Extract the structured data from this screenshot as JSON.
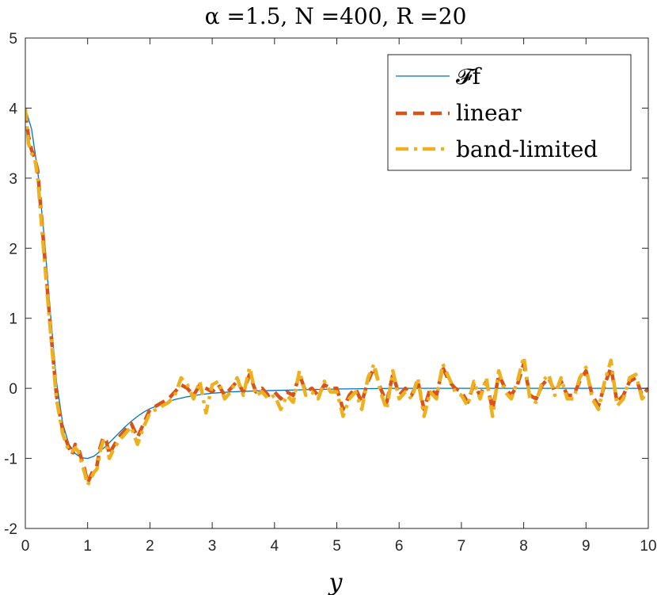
{
  "chart_data": {
    "type": "line",
    "title": "α =1.5, N =400, R =20",
    "xlabel": "y",
    "ylabel": "",
    "xlim": [
      0,
      10
    ],
    "ylim": [
      -2,
      5
    ],
    "xticks": [
      0,
      1,
      2,
      3,
      4,
      5,
      6,
      7,
      8,
      9,
      10
    ],
    "yticks": [
      -2,
      -1,
      0,
      1,
      2,
      3,
      4,
      5
    ],
    "grid": false,
    "legend_position": "top-right",
    "series": [
      {
        "name": "𝓕f",
        "color": "#0072BD",
        "style": "solid",
        "x": [
          0,
          0.1,
          0.2,
          0.3,
          0.4,
          0.5,
          0.6,
          0.7,
          0.8,
          0.9,
          1.0,
          1.1,
          1.2,
          1.3,
          1.4,
          1.5,
          1.6,
          1.7,
          1.8,
          1.9,
          2.0,
          2.2,
          2.4,
          2.6,
          2.8,
          3.0,
          3.3,
          3.6,
          4.0,
          4.5,
          5.0,
          6.0,
          7.0,
          8.0,
          9.0,
          10.0
        ],
        "y": [
          4.0,
          3.7,
          3.1,
          2.2,
          1.1,
          0.1,
          -0.5,
          -0.8,
          -0.93,
          -0.99,
          -1.0,
          -0.97,
          -0.9,
          -0.82,
          -0.73,
          -0.64,
          -0.55,
          -0.47,
          -0.4,
          -0.34,
          -0.29,
          -0.22,
          -0.16,
          -0.12,
          -0.09,
          -0.07,
          -0.05,
          -0.04,
          -0.03,
          -0.02,
          -0.01,
          0.0,
          0.0,
          0.0,
          0.0,
          0.0
        ]
      },
      {
        "name": "linear",
        "color": "#D95319",
        "style": "dashed",
        "x": [
          0,
          0.05,
          0.1,
          0.15,
          0.2,
          0.3,
          0.4,
          0.5,
          0.6,
          0.7,
          0.75,
          0.8,
          0.85,
          0.9,
          0.95,
          1.0,
          1.05,
          1.1,
          1.15,
          1.2,
          1.25,
          1.3,
          1.35,
          1.4,
          1.5,
          1.6,
          1.7,
          1.8,
          1.9,
          2.0,
          2.1,
          2.2,
          2.3,
          2.4,
          2.5,
          2.6,
          2.7,
          2.8,
          2.9,
          3.0,
          3.1,
          3.2,
          3.3,
          3.4,
          3.5,
          3.6,
          3.7,
          3.8,
          3.9,
          4.0,
          4.1,
          4.2,
          4.3,
          4.4,
          4.5,
          4.6,
          4.7,
          4.8,
          4.9,
          5.0,
          5.1,
          5.2,
          5.3,
          5.4,
          5.5,
          5.6,
          5.7,
          5.8,
          5.9,
          6.0,
          6.1,
          6.2,
          6.3,
          6.4,
          6.5,
          6.6,
          6.7,
          6.8,
          6.9,
          7.0,
          7.1,
          7.2,
          7.3,
          7.4,
          7.5,
          7.6,
          7.7,
          7.8,
          7.9,
          8.0,
          8.1,
          8.2,
          8.3,
          8.4,
          8.5,
          8.6,
          8.7,
          8.8,
          8.9,
          9.0,
          9.1,
          9.2,
          9.3,
          9.4,
          9.5,
          9.6,
          9.7,
          9.8,
          9.9,
          10.0
        ],
        "y": [
          3.95,
          3.6,
          3.4,
          3.3,
          3.1,
          2.0,
          0.9,
          -0.1,
          -0.6,
          -0.85,
          -0.95,
          -0.8,
          -0.85,
          -1.0,
          -1.15,
          -1.35,
          -1.25,
          -1.15,
          -1.1,
          -0.85,
          -0.7,
          -0.75,
          -0.95,
          -0.85,
          -0.7,
          -0.6,
          -0.5,
          -0.7,
          -0.5,
          -0.3,
          -0.25,
          -0.2,
          -0.15,
          -0.05,
          0.05,
          0.0,
          -0.1,
          0.05,
          0.0,
          -0.05,
          0.05,
          -0.1,
          0.0,
          0.1,
          -0.05,
          0.2,
          -0.05,
          0.0,
          -0.1,
          -0.05,
          -0.15,
          -0.05,
          -0.1,
          0.2,
          -0.05,
          0.0,
          -0.1,
          0.05,
          0.0,
          0.0,
          -0.3,
          -0.1,
          0.0,
          -0.2,
          0.1,
          0.3,
          0.0,
          -0.2,
          0.2,
          -0.1,
          0.0,
          -0.1,
          0.1,
          -0.3,
          0.0,
          -0.1,
          0.3,
          0.1,
          0.0,
          -0.05,
          -0.2,
          0.05,
          -0.1,
          0.1,
          -0.3,
          0.2,
          0.0,
          -0.1,
          0.05,
          0.35,
          -0.1,
          -0.15,
          0.05,
          0.15,
          -0.05,
          0.1,
          -0.1,
          -0.1,
          0.1,
          0.25,
          -0.1,
          -0.25,
          0.05,
          0.3,
          -0.2,
          -0.1,
          0.1,
          0.15,
          -0.1,
          0.0
        ]
      },
      {
        "name": "band-limited",
        "color": "#EDB120",
        "style": "dashdot",
        "x": [
          0,
          0.05,
          0.1,
          0.15,
          0.2,
          0.3,
          0.4,
          0.5,
          0.6,
          0.7,
          0.75,
          0.8,
          0.85,
          0.9,
          0.95,
          1.0,
          1.05,
          1.1,
          1.15,
          1.2,
          1.25,
          1.3,
          1.35,
          1.4,
          1.5,
          1.6,
          1.7,
          1.8,
          1.9,
          2.0,
          2.1,
          2.2,
          2.3,
          2.4,
          2.5,
          2.6,
          2.7,
          2.8,
          2.9,
          3.0,
          3.1,
          3.2,
          3.3,
          3.4,
          3.5,
          3.6,
          3.7,
          3.8,
          3.9,
          4.0,
          4.1,
          4.2,
          4.3,
          4.4,
          4.5,
          4.6,
          4.7,
          4.8,
          4.9,
          5.0,
          5.1,
          5.2,
          5.3,
          5.4,
          5.5,
          5.6,
          5.7,
          5.8,
          5.9,
          6.0,
          6.1,
          6.2,
          6.3,
          6.4,
          6.5,
          6.6,
          6.7,
          6.8,
          6.9,
          7.0,
          7.1,
          7.2,
          7.3,
          7.4,
          7.5,
          7.6,
          7.7,
          7.8,
          7.9,
          8.0,
          8.1,
          8.2,
          8.3,
          8.4,
          8.5,
          8.6,
          8.7,
          8.8,
          8.9,
          9.0,
          9.1,
          9.2,
          9.3,
          9.4,
          9.5,
          9.6,
          9.7,
          9.8,
          9.9,
          10.0
        ],
        "y": [
          4.0,
          3.5,
          3.35,
          3.3,
          3.0,
          1.9,
          0.85,
          -0.15,
          -0.65,
          -0.9,
          -0.9,
          -0.85,
          -0.9,
          -1.05,
          -1.2,
          -1.38,
          -1.3,
          -1.2,
          -1.15,
          -0.9,
          -0.75,
          -0.8,
          -1.0,
          -0.9,
          -0.75,
          -0.65,
          -0.55,
          -0.8,
          -0.55,
          -0.35,
          -0.3,
          -0.25,
          -0.2,
          -0.1,
          0.15,
          0.05,
          -0.15,
          0.1,
          -0.35,
          0.05,
          0.1,
          -0.15,
          -0.05,
          0.15,
          -0.1,
          0.3,
          -0.1,
          -0.05,
          -0.15,
          -0.1,
          -0.3,
          -0.1,
          -0.2,
          0.25,
          -0.1,
          -0.05,
          -0.15,
          0.1,
          -0.05,
          -0.05,
          -0.4,
          -0.15,
          -0.05,
          -0.3,
          0.15,
          0.35,
          -0.05,
          -0.3,
          0.25,
          -0.15,
          -0.05,
          -0.15,
          0.15,
          -0.4,
          -0.05,
          -0.15,
          0.35,
          0.15,
          -0.05,
          -0.1,
          -0.25,
          0.1,
          -0.15,
          0.15,
          -0.4,
          0.25,
          -0.05,
          -0.15,
          0.1,
          0.45,
          -0.15,
          -0.2,
          0.1,
          0.2,
          -0.1,
          0.15,
          -0.15,
          -0.15,
          0.15,
          0.3,
          -0.15,
          -0.3,
          0.1,
          0.4,
          -0.25,
          -0.15,
          0.15,
          0.2,
          -0.15,
          -0.05
        ]
      }
    ]
  }
}
